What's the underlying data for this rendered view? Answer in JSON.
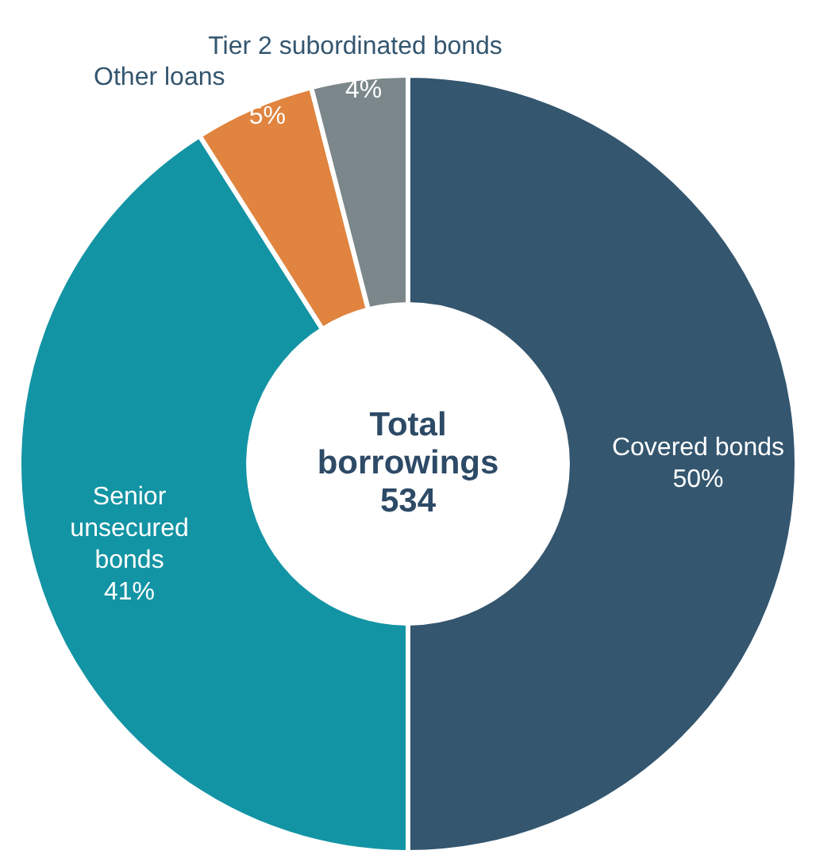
{
  "chart_data": {
    "type": "donut",
    "categories": [
      "Covered bonds",
      "Senior unsecured bonds",
      "Other loans",
      "Tier 2 subordinated bonds"
    ],
    "values": [
      50,
      41,
      5,
      4
    ],
    "value_labels": [
      "50%",
      "41%",
      "5%",
      "4%"
    ],
    "colors": [
      "#34566f",
      "#1394a4",
      "#e0843f",
      "#7b878a"
    ],
    "annotations": [
      "Total borrowings 534"
    ],
    "legend": false
  }
}
